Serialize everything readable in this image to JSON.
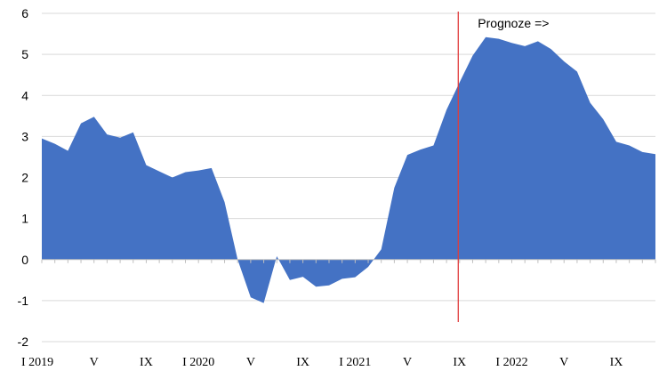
{
  "chart_data": {
    "type": "area",
    "title": "",
    "xlabel": "",
    "ylabel": "",
    "ylim": [
      -2,
      6
    ],
    "yticks": [
      -2,
      -1,
      0,
      1,
      2,
      3,
      4,
      5,
      6
    ],
    "grid": true,
    "fill_color": "#4472C4",
    "forecast_line_color": "#E03C3C",
    "forecast_annotation": "Prognoze =>",
    "forecast_start_index": 32,
    "x": [
      "I 2019",
      "II 2019",
      "III 2019",
      "IV 2019",
      "V 2019",
      "VI 2019",
      "VII 2019",
      "VIII 2019",
      "IX 2019",
      "X 2019",
      "XI 2019",
      "XII 2019",
      "I 2020",
      "II 2020",
      "III 2020",
      "IV 2020",
      "V 2020",
      "VI 2020",
      "VII 2020",
      "VIII 2020",
      "IX 2020",
      "X 2020",
      "XI 2020",
      "XII 2020",
      "I 2021",
      "II 2021",
      "III 2021",
      "IV 2021",
      "V 2021",
      "VI 2021",
      "VII 2021",
      "VIII 2021",
      "IX 2021",
      "X 2021",
      "XI 2021",
      "XII 2021",
      "I 2022",
      "II 2022",
      "III 2022",
      "IV 2022",
      "V 2022",
      "VI 2022",
      "VII 2022",
      "VIII 2022",
      "IX 2022",
      "X 2022",
      "XI 2022",
      "XII 2022"
    ],
    "x_tick_labels": [
      {
        "index": 0,
        "label": "I 2019"
      },
      {
        "index": 4,
        "label": "V"
      },
      {
        "index": 8,
        "label": "IX"
      },
      {
        "index": 12,
        "label": "I 2020"
      },
      {
        "index": 16,
        "label": "V"
      },
      {
        "index": 20,
        "label": "IX"
      },
      {
        "index": 24,
        "label": "I 2021"
      },
      {
        "index": 28,
        "label": "V"
      },
      {
        "index": 32,
        "label": "IX"
      },
      {
        "index": 36,
        "label": "I 2022"
      },
      {
        "index": 40,
        "label": "V"
      },
      {
        "index": 44,
        "label": "IX"
      }
    ],
    "values": [
      2.95,
      2.82,
      2.65,
      3.32,
      3.48,
      3.05,
      2.97,
      3.1,
      2.3,
      2.15,
      2.0,
      2.13,
      2.17,
      2.23,
      1.4,
      0.0,
      -0.92,
      -1.06,
      0.08,
      -0.5,
      -0.42,
      -0.66,
      -0.63,
      -0.47,
      -0.43,
      -0.18,
      0.25,
      1.75,
      2.55,
      2.68,
      2.78,
      3.65,
      4.32,
      4.97,
      5.42,
      5.38,
      5.28,
      5.2,
      5.32,
      5.13,
      4.83,
      4.58,
      3.82,
      3.42,
      2.87,
      2.78,
      2.62,
      2.57
    ]
  }
}
